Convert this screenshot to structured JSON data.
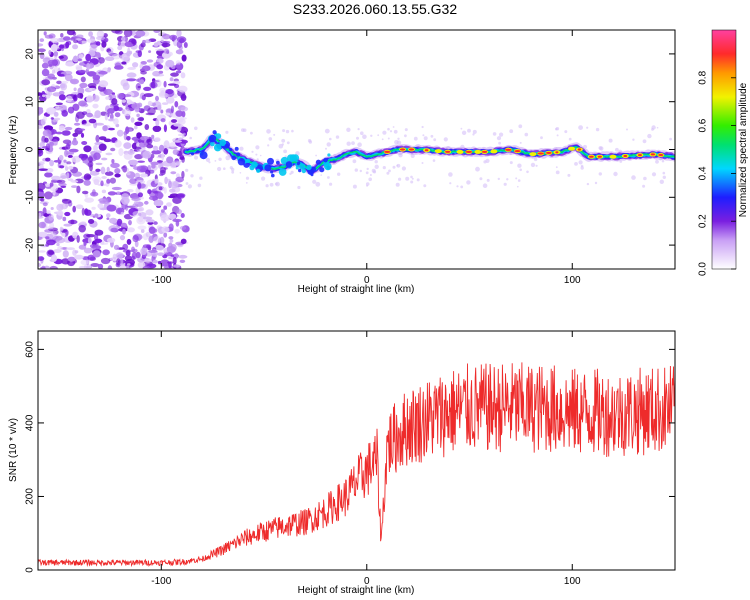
{
  "title": "S233.2026.060.13.55.G32",
  "chart_data": [
    {
      "type": "heatmap",
      "name": "spectrogram",
      "title": "S233.2026.060.13.55.G32",
      "xlabel": "Height of straight line (km)",
      "ylabel": "Frequency (Hz)",
      "xlim": [
        -160,
        150
      ],
      "ylim": [
        -25,
        25
      ],
      "xticks": [
        -100,
        0,
        100
      ],
      "yticks": [
        -20,
        -10,
        0,
        10,
        20
      ],
      "colorbar": {
        "label": "Normalized spectral amplitude",
        "range": [
          0.0,
          1.0
        ],
        "ticks": [
          "0.0",
          "0.2",
          "0.4",
          "0.6",
          "0.8"
        ]
      },
      "noise_region_x": [
        -160,
        -88
      ],
      "signal_track": [
        {
          "x": -88,
          "f": -0.5
        },
        {
          "x": -80,
          "f": 0.0
        },
        {
          "x": -75,
          "f": 2.5
        },
        {
          "x": -70,
          "f": 1.0
        },
        {
          "x": -65,
          "f": -1.0
        },
        {
          "x": -60,
          "f": -2.0
        },
        {
          "x": -55,
          "f": -3.0
        },
        {
          "x": -50,
          "f": -3.8
        },
        {
          "x": -45,
          "f": -4.0
        },
        {
          "x": -40,
          "f": -3.6
        },
        {
          "x": -35,
          "f": -2.5
        },
        {
          "x": -30,
          "f": -3.5
        },
        {
          "x": -27,
          "f": -4.5
        },
        {
          "x": -25,
          "f": -4.0
        },
        {
          "x": -20,
          "f": -2.5
        },
        {
          "x": -15,
          "f": -2.0
        },
        {
          "x": -10,
          "f": -1.0
        },
        {
          "x": -5,
          "f": -0.5
        },
        {
          "x": 0,
          "f": -1.5
        },
        {
          "x": 5,
          "f": -1.0
        },
        {
          "x": 10,
          "f": -0.5
        },
        {
          "x": 15,
          "f": 0.0
        },
        {
          "x": 25,
          "f": 0.0
        },
        {
          "x": 40,
          "f": -0.5
        },
        {
          "x": 60,
          "f": -0.5
        },
        {
          "x": 70,
          "f": 0.0
        },
        {
          "x": 80,
          "f": -1.0
        },
        {
          "x": 95,
          "f": -0.5
        },
        {
          "x": 102,
          "f": 0.5
        },
        {
          "x": 108,
          "f": -1.5
        },
        {
          "x": 120,
          "f": -1.5
        },
        {
          "x": 140,
          "f": -1.0
        },
        {
          "x": 150,
          "f": -1.5
        }
      ]
    },
    {
      "type": "line",
      "name": "snr",
      "xlabel": "Height of straight line (km)",
      "ylabel": "SNR (10 * v/v)",
      "xlim": [
        -160,
        150
      ],
      "ylim": [
        0,
        650
      ],
      "xticks": [
        -100,
        0,
        100
      ],
      "yticks": [
        0,
        200,
        400,
        600
      ],
      "color": "#ee2b2b",
      "series": [
        {
          "name": "SNR",
          "x": [
            -160,
            -140,
            -120,
            -100,
            -90,
            -80,
            -70,
            -60,
            -50,
            -40,
            -30,
            -20,
            -10,
            -5,
            0,
            5,
            7,
            10,
            20,
            30,
            40,
            50,
            60,
            70,
            80,
            90,
            100,
            110,
            120,
            130,
            140,
            150
          ],
          "y": [
            20,
            20,
            20,
            20,
            22,
            30,
            55,
            85,
            105,
            120,
            130,
            160,
            200,
            240,
            270,
            300,
            80,
            340,
            390,
            410,
            430,
            440,
            440,
            445,
            440,
            440,
            430,
            430,
            425,
            430,
            435,
            440
          ]
        }
      ]
    }
  ],
  "colors": {
    "noise": "#8a2be2",
    "line": "#ee2b2b",
    "axis": "#000000"
  }
}
